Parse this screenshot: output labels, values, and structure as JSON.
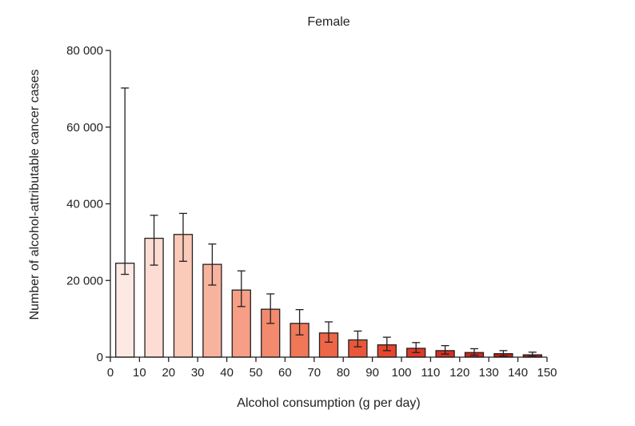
{
  "chart_data": {
    "type": "bar",
    "title": "Female",
    "xlabel": "Alcohol consumption (g per day)",
    "ylabel": "Number of alcohol-attributable cancer cases",
    "xlim": [
      0,
      150
    ],
    "ylim": [
      0,
      80000
    ],
    "x_ticks": [
      0,
      10,
      20,
      30,
      40,
      50,
      60,
      70,
      80,
      90,
      100,
      110,
      120,
      130,
      140,
      150
    ],
    "x_tick_labels": [
      "0",
      "10",
      "20",
      "30",
      "40",
      "50",
      "60",
      "70",
      "80",
      "90",
      "100",
      "110",
      "120",
      "130",
      "140",
      "150"
    ],
    "y_ticks": [
      0,
      20000,
      40000,
      60000,
      80000
    ],
    "y_tick_labels": [
      "0",
      "20 000",
      "40 000",
      "60 000",
      "80 000"
    ],
    "grid": false,
    "categories": [
      "0–10",
      "10–20",
      "20–30",
      "30–40",
      "40–50",
      "50–60",
      "60–70",
      "70–80",
      "80–90",
      "90–100",
      "100–110",
      "110–120",
      "120–130",
      "130–140",
      "140–150"
    ],
    "bar_centers": [
      5,
      15,
      25,
      35,
      45,
      55,
      65,
      75,
      85,
      95,
      105,
      115,
      125,
      135,
      145
    ],
    "values": [
      24500,
      31000,
      32000,
      24200,
      17500,
      12500,
      8800,
      6300,
      4500,
      3200,
      2300,
      1700,
      1200,
      900,
      600
    ],
    "error_low": [
      21600,
      24000,
      25000,
      18800,
      13200,
      8800,
      5800,
      3900,
      2700,
      1700,
      1200,
      800,
      500,
      300,
      200
    ],
    "error_high": [
      70200,
      37000,
      37500,
      29500,
      22500,
      16500,
      12400,
      9200,
      6800,
      5200,
      3800,
      3000,
      2200,
      1700,
      1300
    ],
    "colors": [
      "#fde9e4",
      "#fcdcd3",
      "#fbcab9",
      "#f8b39e",
      "#f69e86",
      "#f38a6e",
      "#f07859",
      "#ed6647",
      "#e95639",
      "#e4472e",
      "#dd3a26",
      "#d62f21",
      "#cf251c",
      "#c71d19",
      "#bf1616"
    ],
    "bar_outline": "#231f20"
  }
}
